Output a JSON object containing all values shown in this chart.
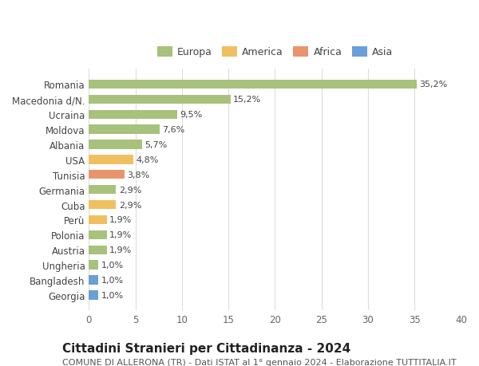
{
  "countries": [
    "Romania",
    "Macedonia d/N.",
    "Ucraina",
    "Moldova",
    "Albania",
    "USA",
    "Tunisia",
    "Germania",
    "Cuba",
    "Perù",
    "Polonia",
    "Austria",
    "Ungheria",
    "Bangladesh",
    "Georgia"
  ],
  "values": [
    35.2,
    15.2,
    9.5,
    7.6,
    5.7,
    4.8,
    3.8,
    2.9,
    2.9,
    1.9,
    1.9,
    1.9,
    1.0,
    1.0,
    1.0
  ],
  "labels": [
    "35,2%",
    "15,2%",
    "9,5%",
    "7,6%",
    "5,7%",
    "4,8%",
    "3,8%",
    "2,9%",
    "2,9%",
    "1,9%",
    "1,9%",
    "1,9%",
    "1,0%",
    "1,0%",
    "1,0%"
  ],
  "continents": [
    "Europa",
    "Europa",
    "Europa",
    "Europa",
    "Europa",
    "America",
    "Africa",
    "Europa",
    "America",
    "America",
    "Europa",
    "Europa",
    "Europa",
    "Asia",
    "Asia"
  ],
  "continent_colors": {
    "Europa": "#a8c17c",
    "America": "#f0c060",
    "Africa": "#e8956d",
    "Asia": "#6a9fd8"
  },
  "legend_order": [
    "Europa",
    "America",
    "Africa",
    "Asia"
  ],
  "title": "Cittadini Stranieri per Cittadinanza - 2024",
  "subtitle": "COMUNE DI ALLERONA (TR) - Dati ISTAT al 1° gennaio 2024 - Elaborazione TUTTITALIA.IT",
  "xlim": [
    0,
    40
  ],
  "xticks": [
    0,
    5,
    10,
    15,
    20,
    25,
    30,
    35,
    40
  ],
  "bg_color": "#ffffff",
  "grid_color": "#dddddd",
  "bar_height": 0.6,
  "title_fontsize": 11,
  "subtitle_fontsize": 8,
  "tick_fontsize": 8.5,
  "label_fontsize": 8
}
